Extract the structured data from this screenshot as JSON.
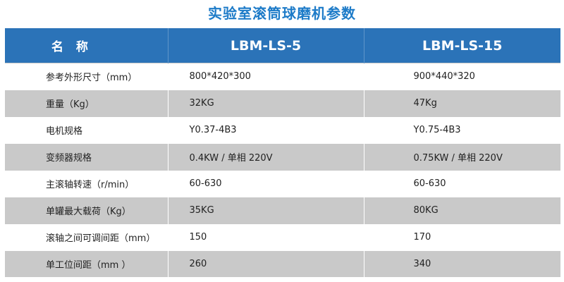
{
  "title": "实验室滚筒球磨机参数",
  "header": {
    "name": "名 称",
    "model1": "LBM-LS-5",
    "model2": "LBM-LS-15"
  },
  "rows": [
    {
      "label": "参考外形尺寸（mm）",
      "v1": "800*420*300",
      "v2": "900*440*320"
    },
    {
      "label": "重量（Kg）",
      "v1": "32KG",
      "v2": "47Kg"
    },
    {
      "label": "电机规格",
      "v1": "Y0.37-4B3",
      "v2": "Y0.75-4B3"
    },
    {
      "label": "变频器规格",
      "v1": "0.4KW / 单相 220V",
      "v2": "0.75KW / 单相 220V"
    },
    {
      "label": "主滚轴转速（r/min）",
      "v1": "60-630",
      "v2": "60-630"
    },
    {
      "label": "单罐最大载荷（Kg）",
      "v1": "35KG",
      "v2": "80KG"
    },
    {
      "label": "滚轴之间可调间距（mm）",
      "v1": "150",
      "v2": "170"
    },
    {
      "label": "单工位间距（mm ）",
      "v1": "260",
      "v2": "340"
    }
  ]
}
